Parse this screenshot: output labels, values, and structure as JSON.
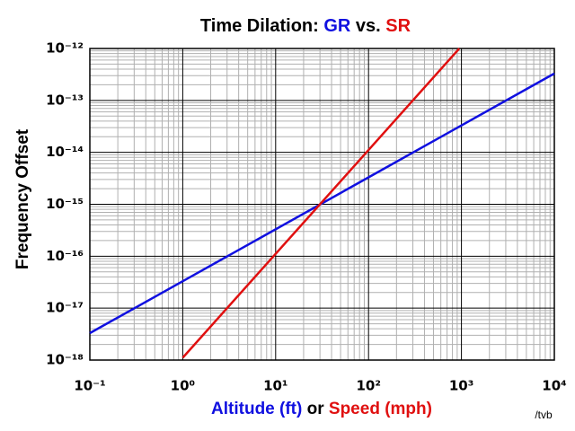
{
  "chart_data": {
    "type": "line",
    "title_parts": [
      {
        "text": "Time Dilation: ",
        "color": "#000000"
      },
      {
        "text": "GR",
        "color": "#1010e0"
      },
      {
        "text": " vs. ",
        "color": "#000000"
      },
      {
        "text": "SR",
        "color": "#e01010"
      }
    ],
    "xlabel_parts": [
      {
        "text": "Altitude (ft)",
        "color": "#1010e0"
      },
      {
        "text": " or ",
        "color": "#000000"
      },
      {
        "text": "Speed (mph)",
        "color": "#e01010"
      }
    ],
    "ylabel": "Frequency Offset",
    "annotation": "/tvb",
    "xscale": "log",
    "yscale": "log",
    "grid": true,
    "xlim": [
      0.1,
      10000
    ],
    "ylim": [
      1e-18,
      1e-12
    ],
    "xticks": [
      {
        "value": 0.1,
        "label": "10⁻¹"
      },
      {
        "value": 1,
        "label": "10⁰"
      },
      {
        "value": 10,
        "label": "10¹"
      },
      {
        "value": 100,
        "label": "10²"
      },
      {
        "value": 1000,
        "label": "10³"
      },
      {
        "value": 10000,
        "label": "10⁴"
      }
    ],
    "yticks": [
      {
        "value": 1e-18,
        "label": "10⁻¹⁸"
      },
      {
        "value": 1e-17,
        "label": "10⁻¹⁷"
      },
      {
        "value": 1e-16,
        "label": "10⁻¹⁶"
      },
      {
        "value": 1e-15,
        "label": "10⁻¹⁵"
      },
      {
        "value": 1e-14,
        "label": "10⁻¹⁴"
      },
      {
        "value": 1e-13,
        "label": "10⁻¹³"
      },
      {
        "value": 1e-12,
        "label": "10⁻¹²"
      }
    ],
    "series": [
      {
        "color": "#1010e0",
        "x": [
          0.1,
          1,
          10,
          100,
          1000,
          10000
        ],
        "values": [
          3.3e-18,
          3.3e-17,
          3.3e-16,
          3.3e-15,
          3.3e-14,
          3.3e-13
        ]
      },
      {
        "color": "#e01010",
        "x": [
          1,
          10,
          100,
          948
        ],
        "values": [
          1.11e-18,
          1.11e-16,
          1.11e-14,
          1e-12
        ]
      }
    ]
  }
}
